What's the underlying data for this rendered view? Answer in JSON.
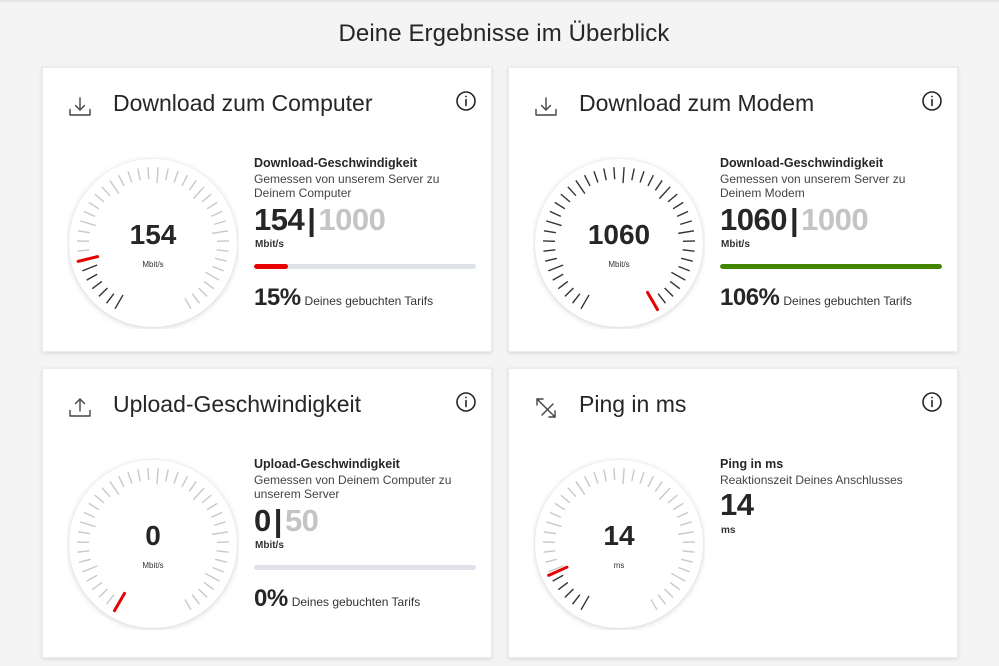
{
  "page_title": "Deine Ergebnisse im Überblick",
  "cards": [
    {
      "title": "Download zum Computer",
      "icon": "download-icon",
      "gauge_value": "154",
      "gauge_unit": "Mbit/s",
      "label": "Download-Geschwindigkeit",
      "description": "Gemessen von unserem Server zu Deinem Computer",
      "measured": "154",
      "separator": "|",
      "booked": "1000",
      "unit": "Mbit/s",
      "progress_fraction": 0.154,
      "progress_color": "#e60000",
      "percent": "15%",
      "percent_text": "Deines gebuchten Tarifs"
    },
    {
      "title": "Download zum Modem",
      "icon": "download-icon",
      "gauge_value": "1060",
      "gauge_unit": "Mbit/s",
      "label": "Download-Geschwindigkeit",
      "description": "Gemessen von unserem Server zu Deinem Modem",
      "measured": "1060",
      "separator": "|",
      "booked": "1000",
      "unit": "Mbit/s",
      "progress_fraction": 1.0,
      "progress_color": "#428600",
      "percent": "106%",
      "percent_text": "Deines gebuchten Tarifs"
    },
    {
      "title": "Upload-Geschwindigkeit",
      "icon": "upload-icon",
      "gauge_value": "0",
      "gauge_unit": "Mbit/s",
      "label": "Upload-Geschwindigkeit",
      "description": "Gemessen von Deinem Computer zu unserem Server",
      "measured": "0",
      "separator": "|",
      "booked": "50",
      "unit": "Mbit/s",
      "progress_fraction": 0.0,
      "progress_color": "#e60000",
      "percent": "0%",
      "percent_text": "Deines gebuchten Tarifs"
    },
    {
      "title": "Ping in ms",
      "icon": "ping-arrows-icon",
      "gauge_value": "14",
      "gauge_unit": "ms",
      "label": "Ping in ms",
      "description": "Reaktionszeit Deines Anschlusses",
      "measured": "14",
      "unit": "ms"
    }
  ],
  "gauges": [
    {
      "fill_fraction": 0.154
    },
    {
      "fill_fraction": 1.0
    },
    {
      "fill_fraction": 0.0
    },
    {
      "fill_fraction": 0.12
    }
  ],
  "colors": {
    "accent_red": "#e60000",
    "success_green": "#428600",
    "tick_dark": "#333333",
    "tick_light": "#c8c8c8"
  }
}
